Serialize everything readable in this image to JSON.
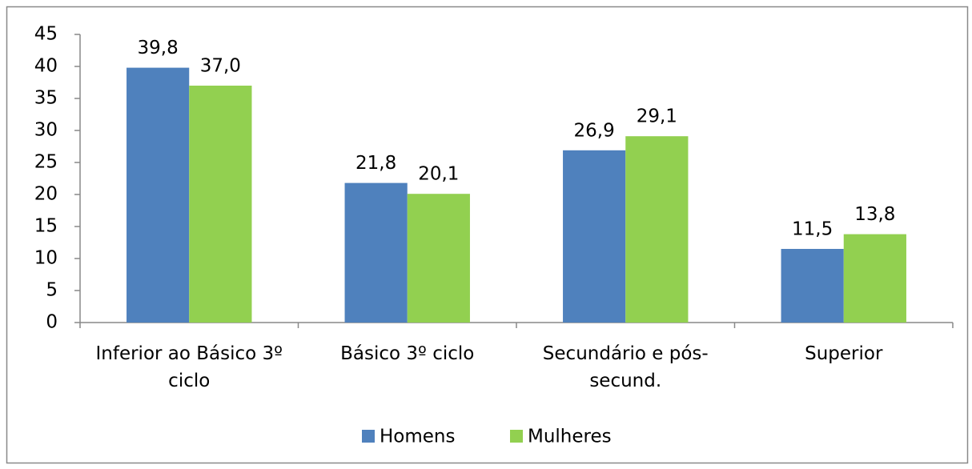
{
  "chart_data": {
    "type": "bar",
    "categories": [
      "Inferior ao Básico 3º ciclo",
      "Básico 3º ciclo",
      "Secundário e pós-secund.",
      "Superior"
    ],
    "series": [
      {
        "name": "Homens",
        "color": "#4f81bd",
        "values": [
          39.8,
          21.8,
          26.9,
          11.5
        ],
        "value_labels": [
          "39,8",
          "21,8",
          "26,9",
          "11,5"
        ]
      },
      {
        "name": "Mulheres",
        "color": "#92d050",
        "values": [
          37.0,
          20.1,
          29.1,
          13.8
        ],
        "value_labels": [
          "37,0",
          "20,1",
          "29,1",
          "13,8"
        ]
      }
    ],
    "ylim": [
      0,
      45
    ],
    "yticks": [
      0,
      5,
      10,
      15,
      20,
      25,
      30,
      35,
      40,
      45
    ],
    "grid": false,
    "legend": "bottom"
  }
}
